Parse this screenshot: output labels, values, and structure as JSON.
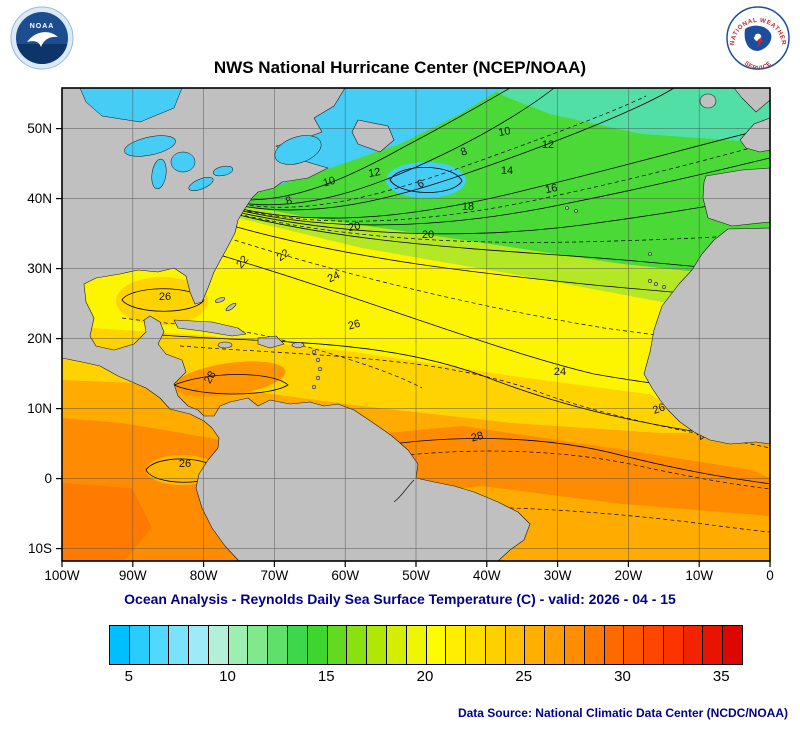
{
  "header": {
    "title": "NWS National Hurricane Center (NCEP/NOAA)",
    "noaa_logo_text": "NOAA",
    "nws_logo_top": "NATIONAL WEATHER",
    "nws_logo_bottom": "SERVICE"
  },
  "map": {
    "lat_ticks": [
      "50N",
      "40N",
      "30N",
      "20N",
      "10N",
      "0",
      "10S"
    ],
    "lon_ticks": [
      "100W",
      "90W",
      "80W",
      "70W",
      "60W",
      "50W",
      "40W",
      "30W",
      "20W",
      "10W",
      "0"
    ],
    "contour_labels": [
      "10",
      "12",
      "8",
      "14",
      "16",
      "10",
      "12",
      "6",
      "8",
      "18",
      "20",
      "20",
      "22",
      "22",
      "24",
      "26",
      "26",
      "24",
      "28",
      "26",
      "28",
      "26",
      "26"
    ]
  },
  "caption": "Ocean Analysis - Reynolds Daily Sea Surface Temperature (C) - valid: 2026 - 04 - 15",
  "colorbar": {
    "ticks": [
      "5",
      "10",
      "15",
      "20",
      "25",
      "30",
      "35"
    ],
    "colors": [
      "#00bfff",
      "#28ccff",
      "#50d8ff",
      "#78e2ff",
      "#9feaf8",
      "#b2f0d8",
      "#9cefb0",
      "#7fe98c",
      "#5ee06a",
      "#3dd74b",
      "#3fd52f",
      "#63da20",
      "#8ae111",
      "#b0e705",
      "#d4ee00",
      "#eef500",
      "#fffb00",
      "#ffee00",
      "#ffdf00",
      "#ffd000",
      "#ffc000",
      "#ffaf00",
      "#ff9e00",
      "#ff8d00",
      "#ff7b00",
      "#ff6a00",
      "#ff5800",
      "#ff4600",
      "#fb3400",
      "#f22300",
      "#e81300",
      "#dd0700"
    ]
  },
  "footer": "Data Source: National Climatic Data Center (NCDC/NOAA)",
  "colors": {
    "land": "#c0c0c0",
    "lake": "#45cdf6",
    "navy": "#00008b"
  },
  "chart_data": {
    "type": "heatmap",
    "title": "NWS National Hurricane Center (NCEP/NOAA)",
    "subtitle": "Ocean Analysis - Reynolds Daily Sea Surface Temperature (C) - valid: 2026 - 04 - 15",
    "region": "North Atlantic Ocean",
    "x_ticks": [
      "100W",
      "90W",
      "80W",
      "70W",
      "60W",
      "50W",
      "40W",
      "30W",
      "20W",
      "10W",
      "0"
    ],
    "y_ticks": [
      "50N",
      "40N",
      "30N",
      "20N",
      "10N",
      "0",
      "10S"
    ],
    "units": "C",
    "colorbar_range": [
      4,
      36
    ],
    "colorbar_ticks": [
      5,
      10,
      15,
      20,
      25,
      30,
      35
    ],
    "contour_interval": 2,
    "labeled_contours_C": [
      6,
      8,
      10,
      12,
      14,
      16,
      18,
      20,
      22,
      24,
      26,
      28
    ],
    "pattern": "SST increases from ~5-8C near 50N in the NW Atlantic to ~28C along the equatorial Atlantic and Caribbean"
  }
}
